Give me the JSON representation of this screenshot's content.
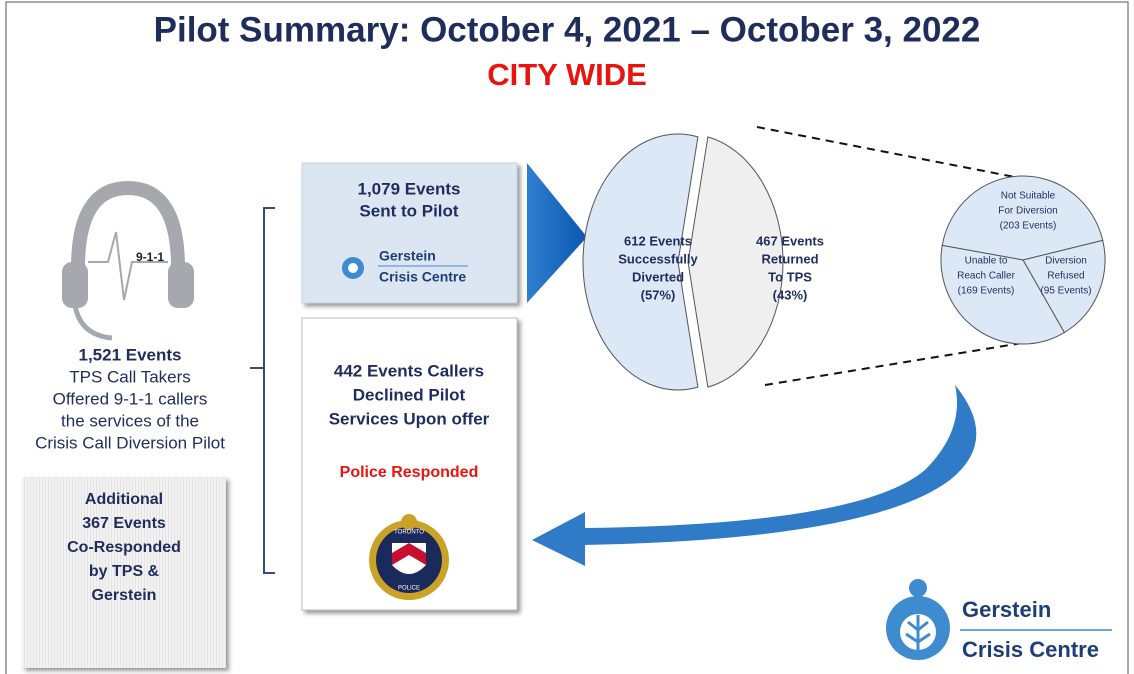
{
  "header": {
    "title": "Pilot Summary: October 4, 2021 – October 3, 2022",
    "subtitle": "CITY WIDE"
  },
  "headset_label": "9-1-1",
  "offered": {
    "lines": [
      "1,521 Events",
      "TPS Call Takers",
      "Offered 9-1-1 callers",
      "the services of the",
      "Crisis Call Diversion Pilot"
    ]
  },
  "co_responded": {
    "lines": [
      "Additional",
      "367 Events",
      "Co-Responded",
      "by TPS &",
      "Gerstein"
    ]
  },
  "sent": {
    "lines": [
      "1,079 Events",
      "Sent to Pilot"
    ],
    "logo": [
      "Gerstein",
      "Crisis Centre"
    ]
  },
  "declined": {
    "lines": [
      "442 Events Callers",
      "Declined Pilot",
      "Services Upon offer"
    ],
    "note": "Police Responded",
    "badge": [
      "TORONTO",
      "POLICE"
    ]
  },
  "pilot_pie": {
    "values": [
      612,
      467
    ],
    "value_labels": [
      [
        "612 Events",
        "Successfully",
        "Diverted",
        "(57%)"
      ],
      [
        "467 Events",
        "Returned",
        "To TPS",
        "(43%)"
      ]
    ],
    "colors": [
      "#dce8f5",
      "#efefef"
    ]
  },
  "returned_pie": {
    "values": [
      203,
      169,
      95
    ],
    "value_labels": [
      [
        "Not Suitable",
        "For Diversion",
        "(203 Events)"
      ],
      [
        "Unable to",
        "Reach Caller",
        "(169 Events)"
      ],
      [
        "Diversion",
        "Refused",
        "(95 Events)"
      ]
    ],
    "colors": [
      "#dce8f5",
      "#dce8f5",
      "#dce8f5"
    ]
  },
  "footer_logo": [
    "Gerstein",
    "Crisis Centre"
  ]
}
